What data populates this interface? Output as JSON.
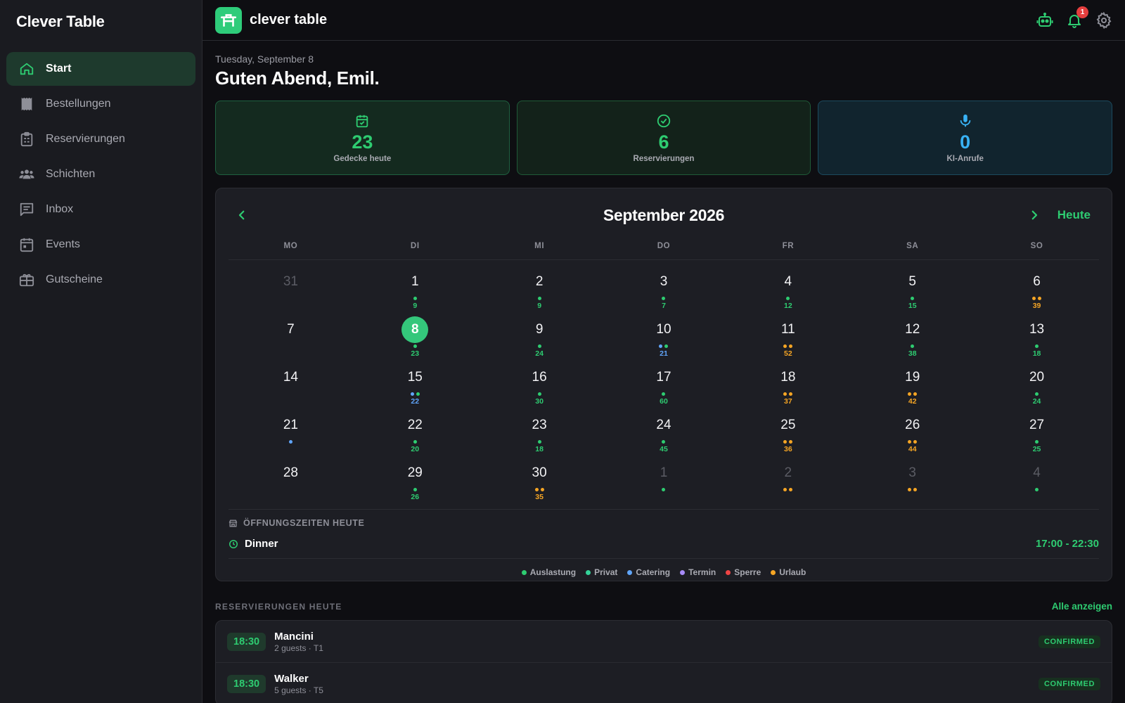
{
  "sidebar": {
    "brand": "Clever Table",
    "items": [
      {
        "label": "Start",
        "icon": "home-icon",
        "active": true
      },
      {
        "label": "Bestellungen",
        "icon": "receipt-icon",
        "active": false
      },
      {
        "label": "Reservierungen",
        "icon": "clipboard-icon",
        "active": false
      },
      {
        "label": "Schichten",
        "icon": "people-icon",
        "active": false
      },
      {
        "label": "Inbox",
        "icon": "message-icon",
        "active": false
      },
      {
        "label": "Events",
        "icon": "calendar-icon",
        "active": false
      },
      {
        "label": "Gutscheine",
        "icon": "gift-card-icon",
        "active": false
      }
    ]
  },
  "header": {
    "app_name": "clever table",
    "notifications_count": "1"
  },
  "main": {
    "date_line": "Tuesday, September 8",
    "greeting": "Guten Abend, Emil.",
    "stats": [
      {
        "value": "23",
        "label": "Gedecke heute"
      },
      {
        "value": "6",
        "label": "Reservierungen"
      },
      {
        "value": "0",
        "label": "KI-Anrufe"
      }
    ]
  },
  "calendar": {
    "title": "September 2026",
    "today_label": "Heute",
    "weekdays": [
      "MO",
      "DI",
      "MI",
      "DO",
      "FR",
      "SA",
      "SO"
    ],
    "days": [
      {
        "n": "31",
        "muted": true,
        "dots": [],
        "count": ""
      },
      {
        "n": "1",
        "dots": [
          "green"
        ],
        "count": "9",
        "countColor": "green"
      },
      {
        "n": "2",
        "dots": [
          "green"
        ],
        "count": "9",
        "countColor": "green"
      },
      {
        "n": "3",
        "dots": [
          "green"
        ],
        "count": "7",
        "countColor": "green"
      },
      {
        "n": "4",
        "dots": [
          "green"
        ],
        "count": "12",
        "countColor": "green"
      },
      {
        "n": "5",
        "dots": [
          "green"
        ],
        "count": "15",
        "countColor": "green"
      },
      {
        "n": "6",
        "dots": [
          "orange",
          "orange"
        ],
        "count": "39",
        "countColor": "orange"
      },
      {
        "n": "7",
        "dots": [],
        "count": ""
      },
      {
        "n": "8",
        "today": true,
        "dots": [
          "green"
        ],
        "count": "23",
        "countColor": "green"
      },
      {
        "n": "9",
        "dots": [
          "green"
        ],
        "count": "24",
        "countColor": "green"
      },
      {
        "n": "10",
        "dots": [
          "blue",
          "green"
        ],
        "count": "21",
        "countColor": "blue"
      },
      {
        "n": "11",
        "dots": [
          "orange",
          "orange"
        ],
        "count": "52",
        "countColor": "orange"
      },
      {
        "n": "12",
        "dots": [
          "green"
        ],
        "count": "38",
        "countColor": "green"
      },
      {
        "n": "13",
        "dots": [
          "green"
        ],
        "count": "18",
        "countColor": "green"
      },
      {
        "n": "14",
        "dots": [],
        "count": ""
      },
      {
        "n": "15",
        "dots": [
          "blue",
          "green"
        ],
        "count": "22",
        "countColor": "blue"
      },
      {
        "n": "16",
        "dots": [
          "green"
        ],
        "count": "30",
        "countColor": "green"
      },
      {
        "n": "17",
        "dots": [
          "green"
        ],
        "count": "60",
        "countColor": "green"
      },
      {
        "n": "18",
        "dots": [
          "orange",
          "orange"
        ],
        "count": "37",
        "countColor": "orange"
      },
      {
        "n": "19",
        "dots": [
          "orange",
          "orange"
        ],
        "count": "42",
        "countColor": "orange"
      },
      {
        "n": "20",
        "dots": [
          "green"
        ],
        "count": "24",
        "countColor": "green"
      },
      {
        "n": "21",
        "dots": [
          "blue"
        ],
        "count": ""
      },
      {
        "n": "22",
        "dots": [
          "green"
        ],
        "count": "20",
        "countColor": "green"
      },
      {
        "n": "23",
        "dots": [
          "green"
        ],
        "count": "18",
        "countColor": "green"
      },
      {
        "n": "24",
        "dots": [
          "green"
        ],
        "count": "45",
        "countColor": "green"
      },
      {
        "n": "25",
        "dots": [
          "orange",
          "orange"
        ],
        "count": "36",
        "countColor": "orange"
      },
      {
        "n": "26",
        "dots": [
          "orange",
          "orange"
        ],
        "count": "44",
        "countColor": "orange"
      },
      {
        "n": "27",
        "dots": [
          "green"
        ],
        "count": "25",
        "countColor": "green"
      },
      {
        "n": "28",
        "dots": [],
        "count": ""
      },
      {
        "n": "29",
        "dots": [
          "green"
        ],
        "count": "26",
        "countColor": "green"
      },
      {
        "n": "30",
        "dots": [
          "orange",
          "orange"
        ],
        "count": "35",
        "countColor": "orange"
      },
      {
        "n": "1",
        "muted": true,
        "dots": [
          "green"
        ],
        "count": ""
      },
      {
        "n": "2",
        "muted": true,
        "dots": [
          "orange",
          "orange"
        ],
        "count": ""
      },
      {
        "n": "3",
        "muted": true,
        "dots": [
          "orange",
          "orange"
        ],
        "count": ""
      },
      {
        "n": "4",
        "muted": true,
        "dots": [
          "green"
        ],
        "count": ""
      }
    ],
    "hours_title": "ÖFFNUNGSZEITEN HEUTE",
    "service_name": "Dinner",
    "service_time": "17:00 - 22:30",
    "legend": [
      {
        "label": "Auslastung",
        "color": "green"
      },
      {
        "label": "Privat",
        "color": "teal"
      },
      {
        "label": "Catering",
        "color": "blue"
      },
      {
        "label": "Termin",
        "color": "purple"
      },
      {
        "label": "Sperre",
        "color": "red"
      },
      {
        "label": "Urlaub",
        "color": "orange"
      }
    ]
  },
  "reservations": {
    "title": "RESERVIERUNGEN HEUTE",
    "show_all": "Alle anzeigen",
    "items": [
      {
        "time": "18:30",
        "name": "Mancini",
        "meta": "2 guests · T1",
        "status": "CONFIRMED"
      },
      {
        "time": "18:30",
        "name": "Walker",
        "meta": "5 guests · T5",
        "status": "CONFIRMED"
      }
    ]
  },
  "colors": {
    "green": "#2ecc71",
    "teal": "#34d399",
    "blue": "#60a5fa",
    "purple": "#a78bfa",
    "red": "#ef4444",
    "orange": "#f5a524"
  }
}
